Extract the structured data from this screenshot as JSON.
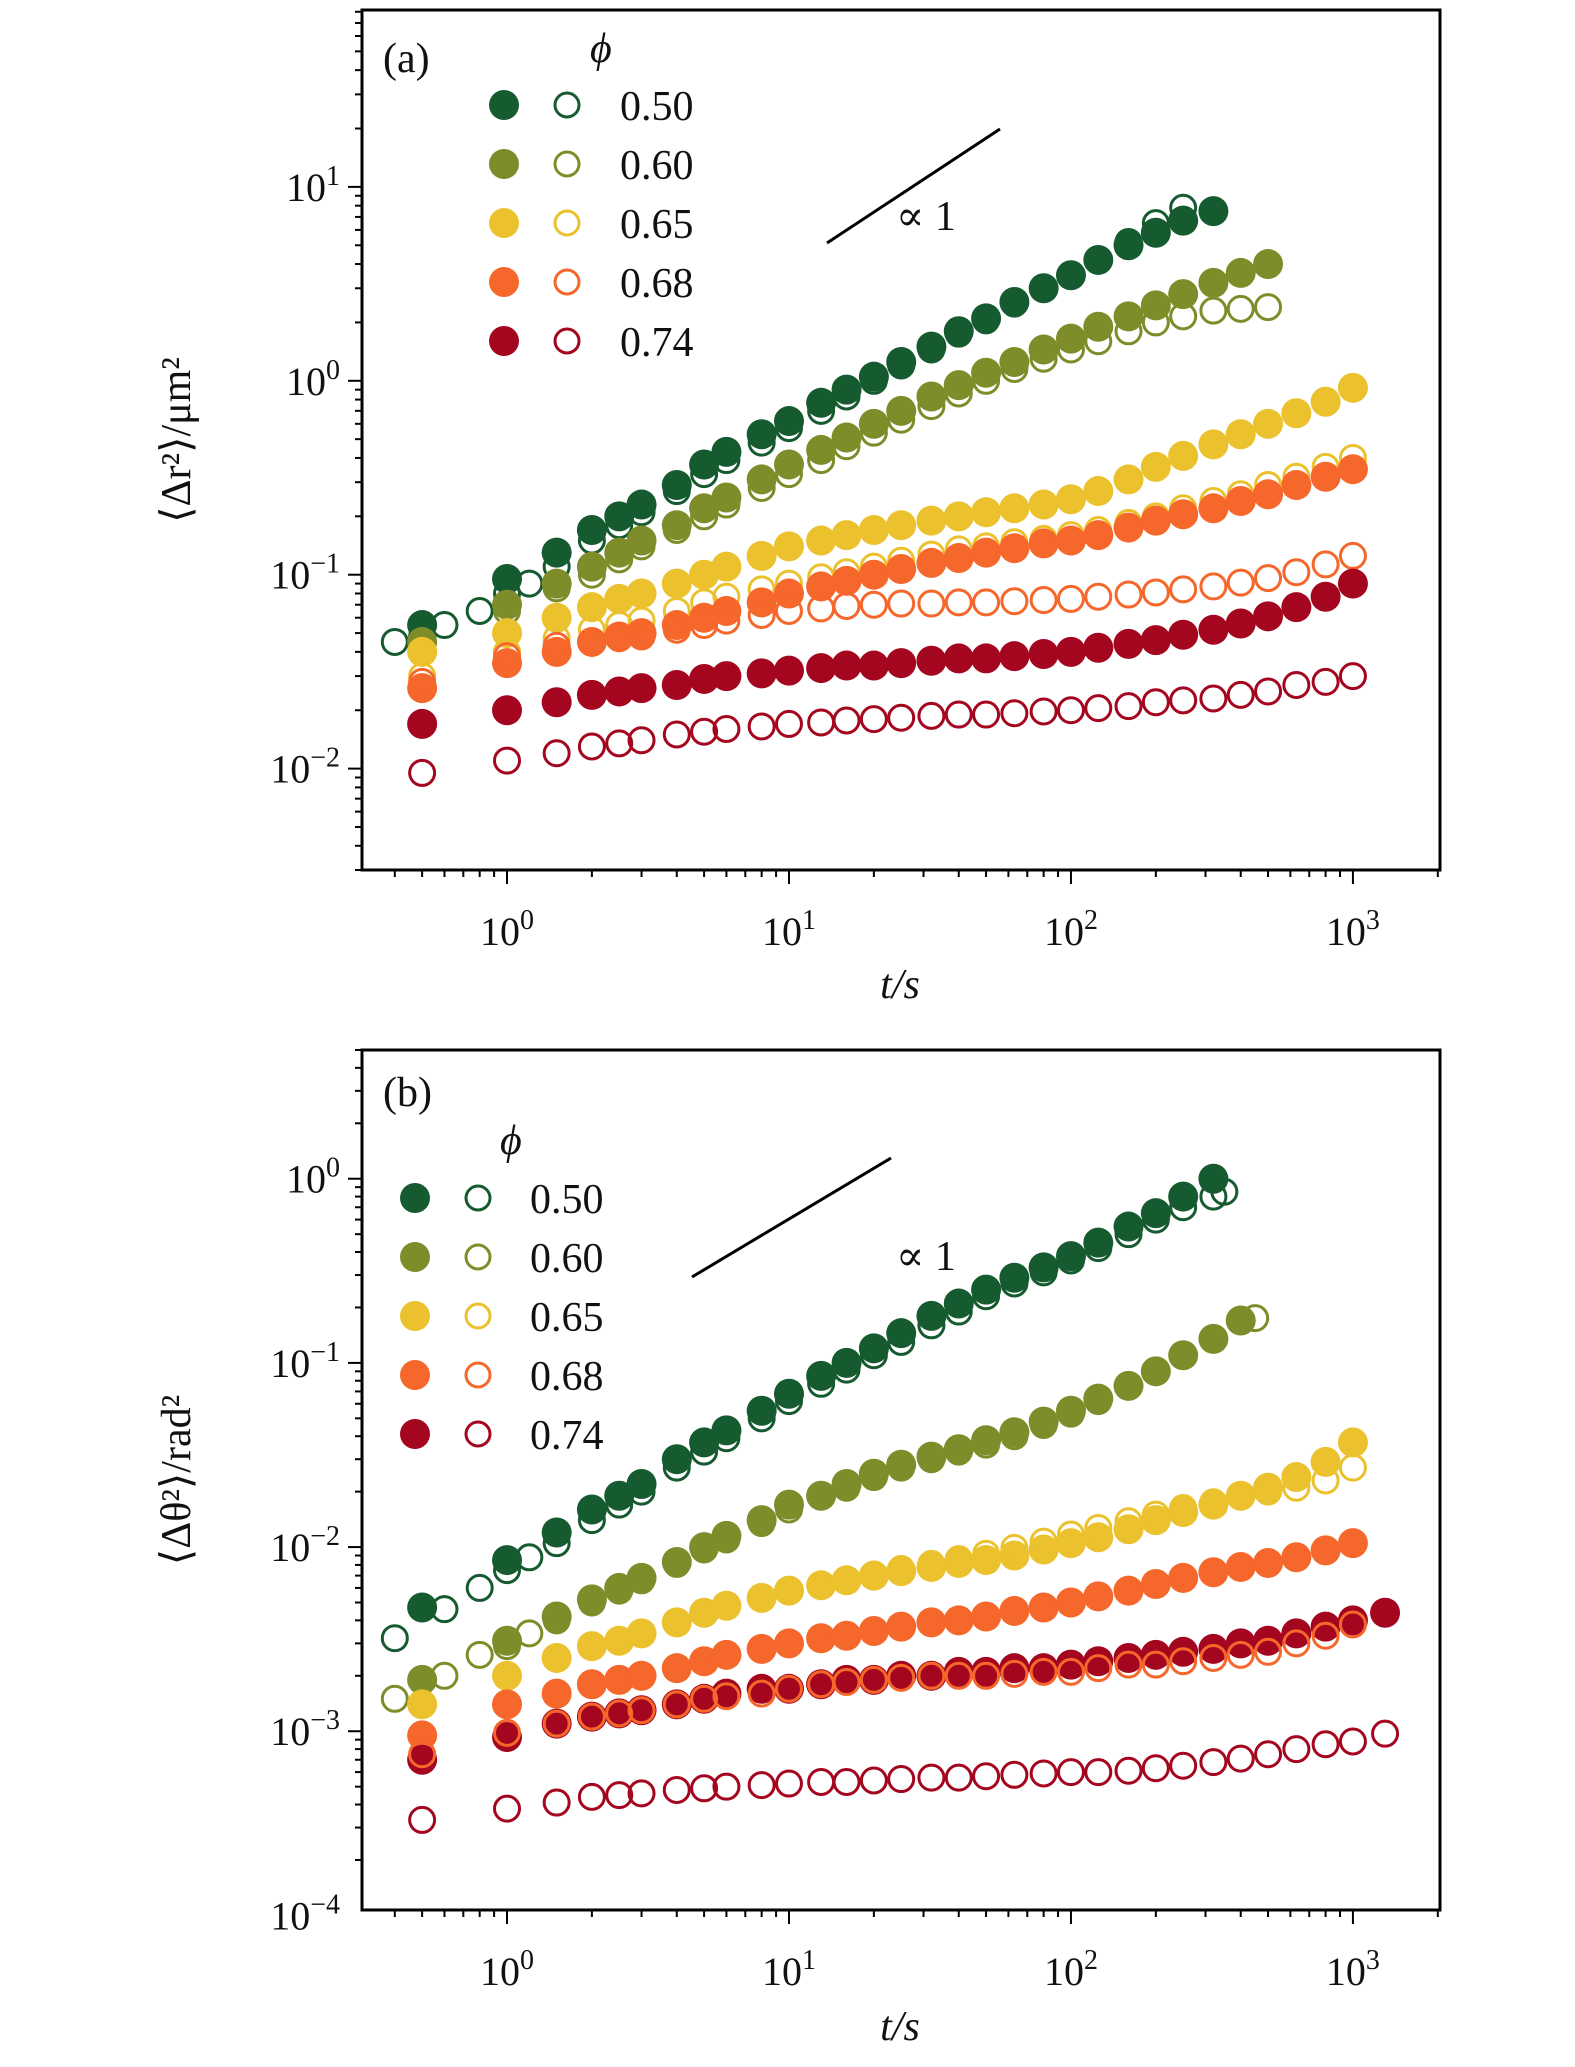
{
  "colors": {
    "0.50": "#165a30",
    "0.60": "#7f8c2a",
    "0.65": "#ecc12e",
    "0.68": "#f5672a",
    "0.74": "#a3061e"
  },
  "chart_data": [
    {
      "type": "scatter",
      "panel_label": "(a)",
      "xlabel": "t/s",
      "ylabel": "⟨Δr²⟩/μm²",
      "xscale": "log",
      "yscale": "log",
      "xlim": [
        0.306,
        2036
      ],
      "ylim": [
        0.003,
        81.7
      ],
      "xticks": [
        {
          "exp": "0"
        },
        {
          "exp": "1"
        },
        {
          "exp": "2"
        },
        {
          "exp": "3"
        }
      ],
      "yticks": [
        {
          "exp": "−2"
        },
        {
          "exp": "−1"
        },
        {
          "exp": "0"
        },
        {
          "exp": "1"
        }
      ],
      "legend_title": "ϕ",
      "legend_position": "top-left",
      "slope_annotation": "∝ 1",
      "t": [
        0.5,
        1,
        1.5,
        2,
        2.5,
        3,
        4,
        5,
        6,
        8,
        10,
        13,
        16,
        20,
        25,
        32,
        40,
        50,
        63,
        80,
        100,
        125,
        160,
        200,
        250,
        320,
        400,
        500,
        630,
        800,
        1000
      ],
      "series": [
        {
          "name": "0.50",
          "fill": "filled",
          "y": [
            0.055,
            0.095,
            0.13,
            0.17,
            0.2,
            0.23,
            0.29,
            0.37,
            0.43,
            0.53,
            0.62,
            0.77,
            0.9,
            1.05,
            1.25,
            1.5,
            1.8,
            2.1,
            2.55,
            3.0,
            3.5,
            4.2,
            5.0,
            5.8,
            6.7,
            7.5
          ]
        },
        {
          "name": "0.50",
          "fill": "open",
          "t": [
            0.4,
            0.5,
            0.6,
            0.8,
            1,
            1.2,
            1.5,
            2,
            2.5,
            3,
            4,
            5,
            6,
            8,
            10,
            13,
            16,
            20,
            25,
            32,
            40,
            50,
            63,
            80,
            100,
            125,
            160,
            200,
            250
          ],
          "y": [
            0.045,
            0.048,
            0.055,
            0.065,
            0.08,
            0.09,
            0.11,
            0.15,
            0.18,
            0.21,
            0.27,
            0.33,
            0.39,
            0.48,
            0.57,
            0.7,
            0.83,
            1.0,
            1.2,
            1.45,
            1.75,
            2.05,
            2.5,
            3.0,
            3.5,
            4.2,
            5.2,
            6.5,
            7.8
          ]
        },
        {
          "name": "0.60",
          "fill": "filled",
          "y": [
            0.045,
            0.07,
            0.09,
            0.11,
            0.13,
            0.15,
            0.18,
            0.22,
            0.25,
            0.31,
            0.37,
            0.44,
            0.51,
            0.6,
            0.7,
            0.83,
            0.95,
            1.1,
            1.25,
            1.45,
            1.65,
            1.9,
            2.15,
            2.45,
            2.8,
            3.2,
            3.6,
            4.0
          ]
        },
        {
          "name": "0.60",
          "fill": "open",
          "y": [
            0.04,
            0.065,
            0.085,
            0.1,
            0.12,
            0.14,
            0.17,
            0.2,
            0.23,
            0.28,
            0.33,
            0.39,
            0.46,
            0.54,
            0.63,
            0.74,
            0.86,
            1.0,
            1.15,
            1.3,
            1.45,
            1.6,
            1.8,
            2.0,
            2.15,
            2.3,
            2.35,
            2.4
          ]
        },
        {
          "name": "0.65",
          "fill": "filled",
          "y": [
            0.04,
            0.05,
            0.06,
            0.068,
            0.075,
            0.08,
            0.09,
            0.1,
            0.11,
            0.125,
            0.14,
            0.15,
            0.16,
            0.17,
            0.18,
            0.19,
            0.2,
            0.21,
            0.22,
            0.23,
            0.245,
            0.27,
            0.31,
            0.36,
            0.41,
            0.47,
            0.53,
            0.6,
            0.68,
            0.78,
            0.92
          ]
        },
        {
          "name": "0.65",
          "fill": "open",
          "y": [
            0.03,
            0.04,
            0.047,
            0.052,
            0.055,
            0.058,
            0.065,
            0.072,
            0.077,
            0.084,
            0.09,
            0.097,
            0.103,
            0.11,
            0.118,
            0.127,
            0.135,
            0.14,
            0.147,
            0.153,
            0.16,
            0.17,
            0.185,
            0.2,
            0.22,
            0.24,
            0.26,
            0.29,
            0.32,
            0.36,
            0.4
          ]
        },
        {
          "name": "0.68",
          "fill": "filled",
          "y": [
            0.026,
            0.035,
            0.04,
            0.045,
            0.048,
            0.05,
            0.055,
            0.06,
            0.065,
            0.072,
            0.08,
            0.087,
            0.093,
            0.1,
            0.107,
            0.115,
            0.122,
            0.13,
            0.137,
            0.145,
            0.15,
            0.16,
            0.175,
            0.19,
            0.205,
            0.22,
            0.24,
            0.26,
            0.29,
            0.32,
            0.35
          ]
        },
        {
          "name": "0.68",
          "fill": "open",
          "y": [
            0.028,
            0.038,
            0.043,
            0.045,
            0.047,
            0.048,
            0.052,
            0.055,
            0.058,
            0.062,
            0.065,
            0.067,
            0.069,
            0.07,
            0.071,
            0.071,
            0.072,
            0.072,
            0.073,
            0.074,
            0.075,
            0.077,
            0.079,
            0.081,
            0.084,
            0.087,
            0.091,
            0.096,
            0.103,
            0.113,
            0.125
          ]
        },
        {
          "name": "0.74",
          "fill": "filled",
          "y": [
            0.017,
            0.02,
            0.022,
            0.024,
            0.025,
            0.026,
            0.027,
            0.029,
            0.03,
            0.031,
            0.032,
            0.033,
            0.034,
            0.034,
            0.035,
            0.036,
            0.037,
            0.037,
            0.038,
            0.039,
            0.04,
            0.042,
            0.044,
            0.046,
            0.049,
            0.052,
            0.056,
            0.061,
            0.068,
            0.077,
            0.09
          ]
        },
        {
          "name": "0.74",
          "fill": "open",
          "y": [
            0.0095,
            0.011,
            0.012,
            0.013,
            0.0135,
            0.014,
            0.015,
            0.0155,
            0.016,
            0.0165,
            0.017,
            0.0173,
            0.0177,
            0.018,
            0.0183,
            0.0187,
            0.019,
            0.019,
            0.0193,
            0.0197,
            0.02,
            0.0205,
            0.021,
            0.022,
            0.0225,
            0.023,
            0.024,
            0.025,
            0.027,
            0.028,
            0.03
          ]
        }
      ]
    },
    {
      "type": "scatter",
      "panel_label": "(b)",
      "xlabel": "t/s",
      "ylabel": "⟨Δθ²⟩/rad²",
      "xscale": "log",
      "yscale": "log",
      "xlim": [
        0.306,
        2036
      ],
      "ylim": [
        0.000107,
        5.0
      ],
      "xticks": [
        {
          "exp": "0"
        },
        {
          "exp": "1"
        },
        {
          "exp": "2"
        },
        {
          "exp": "3"
        }
      ],
      "yticks": [
        {
          "exp": "−4"
        },
        {
          "exp": "−3"
        },
        {
          "exp": "−2"
        },
        {
          "exp": "−1"
        },
        {
          "exp": "0"
        }
      ],
      "legend_title": "ϕ",
      "legend_position": "top-left",
      "slope_annotation": "∝ 1",
      "t": [
        0.5,
        1,
        1.5,
        2,
        2.5,
        3,
        4,
        5,
        6,
        8,
        10,
        13,
        16,
        20,
        25,
        32,
        40,
        50,
        63,
        80,
        100,
        125,
        160,
        200,
        250,
        320,
        400,
        500,
        630,
        800,
        1000,
        1300
      ],
      "series": [
        {
          "name": "0.50",
          "fill": "filled",
          "y": [
            0.0047,
            0.0085,
            0.012,
            0.016,
            0.019,
            0.022,
            0.03,
            0.037,
            0.043,
            0.055,
            0.068,
            0.085,
            0.1,
            0.12,
            0.145,
            0.18,
            0.21,
            0.25,
            0.29,
            0.33,
            0.38,
            0.45,
            0.55,
            0.65,
            0.8,
            1.0
          ]
        },
        {
          "name": "0.50",
          "fill": "open",
          "t": [
            0.4,
            0.6,
            0.8,
            1,
            1.2,
            1.5,
            2,
            2.5,
            3,
            4,
            5,
            6,
            8,
            10,
            13,
            16,
            20,
            25,
            32,
            40,
            50,
            63,
            80,
            100,
            125,
            160,
            200,
            250,
            320,
            350
          ],
          "y": [
            0.0032,
            0.0046,
            0.006,
            0.0075,
            0.0088,
            0.0105,
            0.014,
            0.017,
            0.02,
            0.027,
            0.033,
            0.039,
            0.05,
            0.062,
            0.077,
            0.092,
            0.11,
            0.13,
            0.16,
            0.19,
            0.23,
            0.27,
            0.31,
            0.36,
            0.42,
            0.5,
            0.6,
            0.7,
            0.8,
            0.85
          ]
        },
        {
          "name": "0.60",
          "fill": "filled",
          "y": [
            0.0019,
            0.0031,
            0.0042,
            0.0052,
            0.006,
            0.0068,
            0.0083,
            0.01,
            0.0115,
            0.014,
            0.017,
            0.019,
            0.022,
            0.025,
            0.028,
            0.031,
            0.034,
            0.038,
            0.042,
            0.048,
            0.055,
            0.064,
            0.075,
            0.09,
            0.11,
            0.135,
            0.17
          ]
        },
        {
          "name": "0.60",
          "fill": "open",
          "t": [
            0.4,
            0.6,
            0.8,
            1,
            1.2,
            1.5,
            2,
            2.5,
            3,
            4,
            5,
            6,
            8,
            10,
            13,
            16,
            20,
            25,
            32,
            40,
            50,
            63,
            80,
            100,
            125,
            160,
            200,
            250,
            320,
            450
          ],
          "y": [
            0.0015,
            0.002,
            0.0026,
            0.0029,
            0.0034,
            0.004,
            0.005,
            0.0058,
            0.0066,
            0.0081,
            0.0097,
            0.011,
            0.0135,
            0.016,
            0.019,
            0.021,
            0.024,
            0.027,
            0.03,
            0.033,
            0.036,
            0.04,
            0.046,
            0.053,
            0.062,
            0.075,
            0.09,
            0.11,
            0.135,
            0.175
          ]
        },
        {
          "name": "0.65",
          "fill": "filled",
          "y": [
            0.0014,
            0.002,
            0.0025,
            0.0029,
            0.0031,
            0.0034,
            0.0039,
            0.0044,
            0.0048,
            0.0053,
            0.0058,
            0.0062,
            0.0066,
            0.007,
            0.0074,
            0.0078,
            0.0082,
            0.0085,
            0.009,
            0.0097,
            0.0105,
            0.0113,
            0.0125,
            0.014,
            0.0155,
            0.017,
            0.019,
            0.021,
            0.024,
            0.029,
            0.037
          ]
        },
        {
          "name": "0.65",
          "fill": "open",
          "y": [
            0.0014,
            0.002,
            0.0025,
            0.0029,
            0.0031,
            0.0034,
            0.0039,
            0.0044,
            0.0048,
            0.0053,
            0.0058,
            0.0062,
            0.0066,
            0.0071,
            0.0076,
            0.0081,
            0.0086,
            0.0092,
            0.0099,
            0.0107,
            0.0117,
            0.0127,
            0.0138,
            0.015,
            0.0163,
            0.0175,
            0.019,
            0.02,
            0.021,
            0.023,
            0.027
          ]
        },
        {
          "name": "0.68",
          "fill": "filled",
          "y": [
            0.00095,
            0.0014,
            0.0016,
            0.0018,
            0.0019,
            0.002,
            0.0022,
            0.0024,
            0.0026,
            0.0028,
            0.003,
            0.0032,
            0.0033,
            0.0035,
            0.0037,
            0.0039,
            0.004,
            0.0042,
            0.0045,
            0.0047,
            0.005,
            0.0054,
            0.0058,
            0.0063,
            0.0068,
            0.0073,
            0.0078,
            0.0082,
            0.0088,
            0.0096,
            0.0105
          ]
        },
        {
          "name": "0.74",
          "fill": "filled",
          "y": [
            0.0007,
            0.00093,
            0.0011,
            0.0012,
            0.00125,
            0.0013,
            0.0014,
            0.0015,
            0.0016,
            0.0017,
            0.0017,
            0.0018,
            0.0019,
            0.0019,
            0.002,
            0.002,
            0.0021,
            0.0021,
            0.0022,
            0.0022,
            0.0023,
            0.0024,
            0.0025,
            0.0026,
            0.0027,
            0.0028,
            0.003,
            0.0031,
            0.0034,
            0.0037,
            0.004,
            0.0044
          ]
        },
        {
          "name": "0.68",
          "fill": "open",
          "y": [
            0.00075,
            0.00098,
            0.0011,
            0.0012,
            0.00125,
            0.0013,
            0.0014,
            0.0015,
            0.00155,
            0.0016,
            0.0017,
            0.0018,
            0.00185,
            0.0019,
            0.00195,
            0.002,
            0.002,
            0.002,
            0.00205,
            0.0021,
            0.0021,
            0.0022,
            0.0023,
            0.0023,
            0.0024,
            0.0025,
            0.0026,
            0.0027,
            0.003,
            0.0033,
            0.0038
          ]
        },
        {
          "name": "0.74",
          "fill": "open",
          "y": [
            0.00033,
            0.00038,
            0.00041,
            0.00044,
            0.00045,
            0.00046,
            0.00048,
            0.00049,
            0.0005,
            0.00051,
            0.00052,
            0.00053,
            0.00053,
            0.00054,
            0.00055,
            0.00056,
            0.00056,
            0.00057,
            0.00058,
            0.00059,
            0.0006,
            0.0006,
            0.00061,
            0.00063,
            0.00065,
            0.00068,
            0.00071,
            0.00075,
            0.0008,
            0.00085,
            0.00088,
            0.00097
          ]
        }
      ]
    }
  ],
  "legend": [
    "0.50",
    "0.60",
    "0.65",
    "0.68",
    "0.74"
  ]
}
